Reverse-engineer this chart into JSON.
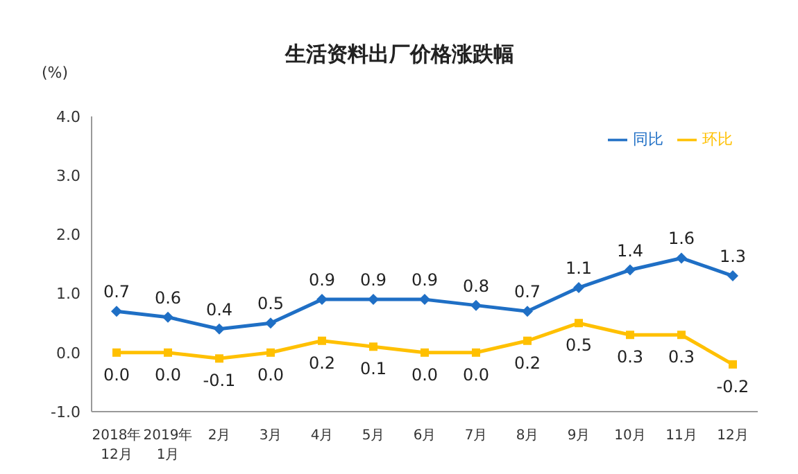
{
  "chart_data": {
    "type": "line",
    "title": "生活资料出厂价格涨跌幅",
    "ylabel": "(%)",
    "categories": [
      "2018年\n12月",
      "2019年\n1月",
      "2月",
      "3月",
      "4月",
      "5月",
      "6月",
      "7月",
      "8月",
      "9月",
      "10月",
      "11月",
      "12月"
    ],
    "series": [
      {
        "name": "同比",
        "color": "#1f6fc5",
        "marker": "diamond",
        "values": [
          0.7,
          0.6,
          0.4,
          0.5,
          0.9,
          0.9,
          0.9,
          0.8,
          0.7,
          1.1,
          1.4,
          1.6,
          1.3
        ],
        "value_labels": [
          "0.7",
          "0.6",
          "0.4",
          "0.5",
          "0.9",
          "0.9",
          "0.9",
          "0.8",
          "0.7",
          "1.1",
          "1.4",
          "1.6",
          "1.3"
        ]
      },
      {
        "name": "环比",
        "color": "#ffc000",
        "marker": "square",
        "values": [
          0.0,
          0.0,
          -0.1,
          0.0,
          0.2,
          0.1,
          0.0,
          0.0,
          0.2,
          0.5,
          0.3,
          0.3,
          -0.2
        ],
        "value_labels": [
          "0.0",
          "0.0",
          "-0.1",
          "0.0",
          "0.2",
          "0.1",
          "0.0",
          "0.0",
          "0.2",
          "0.5",
          "0.3",
          "0.3",
          "-0.2"
        ]
      }
    ],
    "ylim": [
      -1,
      4
    ],
    "yticks": [
      {
        "value": -1,
        "label": "-1.0"
      },
      {
        "value": 0,
        "label": "0.0"
      },
      {
        "value": 1,
        "label": "1.0"
      },
      {
        "value": 2,
        "label": "2.0"
      },
      {
        "value": 3,
        "label": "3.0"
      },
      {
        "value": 4,
        "label": "4.0"
      }
    ],
    "grid": false,
    "legend": "top right",
    "line_style": "solid"
  }
}
